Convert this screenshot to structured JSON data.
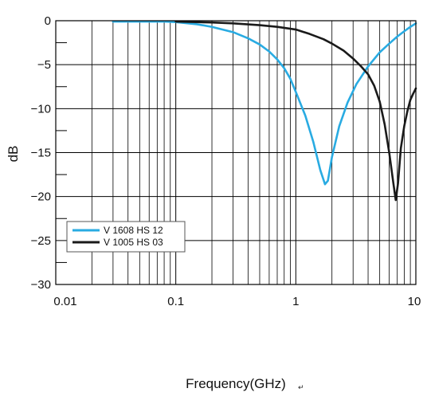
{
  "chart_data": {
    "type": "line",
    "xlabel": "Frequency(GHz)",
    "xlabel_suffix": "↵",
    "ylabel": "dB",
    "xscale": "log",
    "xlim": [
      0.01,
      10
    ],
    "ylim": [
      -30,
      0
    ],
    "x_ticks": [
      {
        "value": 0.01,
        "label": "0.01"
      },
      {
        "value": 0.1,
        "label": "0.1"
      },
      {
        "value": 1,
        "label": "1"
      },
      {
        "value": 10,
        "label": "10"
      }
    ],
    "y_ticks": [
      {
        "value": 0,
        "label": "0"
      },
      {
        "value": -5,
        "label": "−5"
      },
      {
        "value": -10,
        "label": "−10"
      },
      {
        "value": -15,
        "label": "−15"
      },
      {
        "value": -20,
        "label": "−20"
      },
      {
        "value": -25,
        "label": "−25"
      },
      {
        "value": -30,
        "label": "−30"
      }
    ],
    "grid": true,
    "legend_position": "bottom-left",
    "series": [
      {
        "name": "V 1608 HS 12",
        "color": "#29abe2",
        "points": [
          [
            0.03,
            -0.1
          ],
          [
            0.05,
            -0.1
          ],
          [
            0.08,
            -0.1
          ],
          [
            0.1,
            -0.15
          ],
          [
            0.15,
            -0.4
          ],
          [
            0.2,
            -0.7
          ],
          [
            0.3,
            -1.3
          ],
          [
            0.4,
            -2.0
          ],
          [
            0.5,
            -2.7
          ],
          [
            0.6,
            -3.5
          ],
          [
            0.7,
            -4.4
          ],
          [
            0.8,
            -5.4
          ],
          [
            0.9,
            -6.6
          ],
          [
            1.0,
            -8.1
          ],
          [
            1.2,
            -10.8
          ],
          [
            1.4,
            -13.8
          ],
          [
            1.6,
            -17.0
          ],
          [
            1.75,
            -18.6
          ],
          [
            1.85,
            -18.2
          ],
          [
            2.0,
            -15.5
          ],
          [
            2.3,
            -12.0
          ],
          [
            2.7,
            -9.3
          ],
          [
            3.2,
            -7.2
          ],
          [
            4.0,
            -5.2
          ],
          [
            5.0,
            -3.6
          ],
          [
            6.0,
            -2.6
          ],
          [
            7.0,
            -1.8
          ],
          [
            8.0,
            -1.2
          ],
          [
            9.0,
            -0.7
          ],
          [
            10.0,
            -0.3
          ]
        ]
      },
      {
        "name": "V 1005 HS 03",
        "color": "#1a1a1a",
        "points": [
          [
            0.1,
            -0.1
          ],
          [
            0.2,
            -0.2
          ],
          [
            0.3,
            -0.3
          ],
          [
            0.5,
            -0.5
          ],
          [
            0.7,
            -0.7
          ],
          [
            1.0,
            -1.0
          ],
          [
            1.3,
            -1.5
          ],
          [
            1.7,
            -2.1
          ],
          [
            2.0,
            -2.6
          ],
          [
            2.5,
            -3.4
          ],
          [
            3.0,
            -4.3
          ],
          [
            3.5,
            -5.2
          ],
          [
            4.0,
            -6.1
          ],
          [
            4.5,
            -7.4
          ],
          [
            5.0,
            -9.2
          ],
          [
            5.5,
            -11.8
          ],
          [
            6.0,
            -15.0
          ],
          [
            6.5,
            -18.5
          ],
          [
            6.8,
            -20.4
          ],
          [
            7.1,
            -18.5
          ],
          [
            7.5,
            -14.5
          ],
          [
            8.0,
            -12.0
          ],
          [
            8.5,
            -10.3
          ],
          [
            9.0,
            -9.0
          ],
          [
            9.5,
            -8.3
          ],
          [
            10.0,
            -7.7
          ]
        ]
      }
    ]
  }
}
